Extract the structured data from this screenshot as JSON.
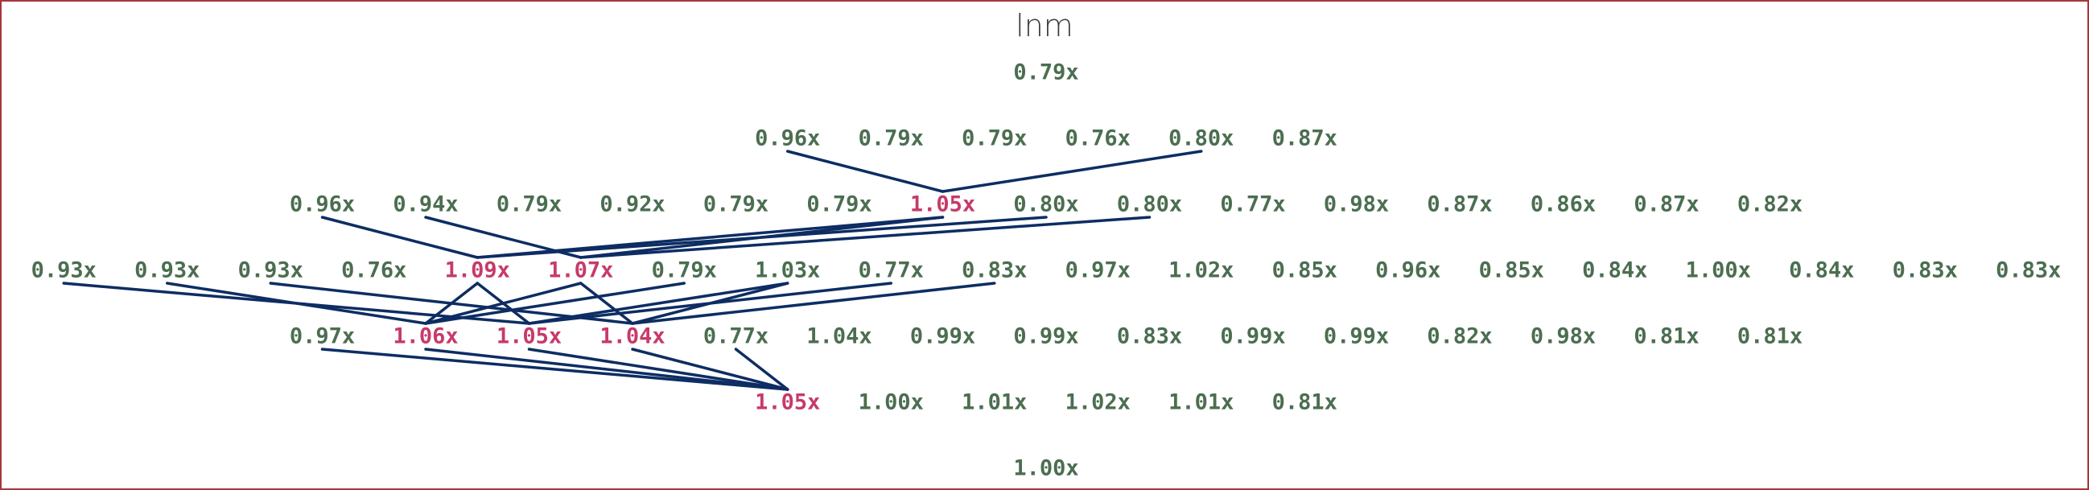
{
  "title": "lnm",
  "colors": {
    "node": "#4b6e50",
    "highlight": "#c73a6a",
    "edge": "#0d2d63",
    "title": "#3a3a3a",
    "border": "#a8343c"
  },
  "rows": [
    [
      {
        "label": "0.79x",
        "highlight": false
      }
    ],
    [
      {
        "label": "0.96x",
        "highlight": false
      },
      {
        "label": "0.79x",
        "highlight": false
      },
      {
        "label": "0.79x",
        "highlight": false
      },
      {
        "label": "0.76x",
        "highlight": false
      },
      {
        "label": "0.80x",
        "highlight": false
      },
      {
        "label": "0.87x",
        "highlight": false
      }
    ],
    [
      {
        "label": "0.96x",
        "highlight": false
      },
      {
        "label": "0.94x",
        "highlight": false
      },
      {
        "label": "0.79x",
        "highlight": false
      },
      {
        "label": "0.92x",
        "highlight": false
      },
      {
        "label": "0.79x",
        "highlight": false
      },
      {
        "label": "0.79x",
        "highlight": false
      },
      {
        "label": "1.05x",
        "highlight": true
      },
      {
        "label": "0.80x",
        "highlight": false
      },
      {
        "label": "0.80x",
        "highlight": false
      },
      {
        "label": "0.77x",
        "highlight": false
      },
      {
        "label": "0.98x",
        "highlight": false
      },
      {
        "label": "0.87x",
        "highlight": false
      },
      {
        "label": "0.86x",
        "highlight": false
      },
      {
        "label": "0.87x",
        "highlight": false
      },
      {
        "label": "0.82x",
        "highlight": false
      }
    ],
    [
      {
        "label": "0.93x",
        "highlight": false
      },
      {
        "label": "0.93x",
        "highlight": false
      },
      {
        "label": "0.93x",
        "highlight": false
      },
      {
        "label": "0.76x",
        "highlight": false
      },
      {
        "label": "1.09x",
        "highlight": true
      },
      {
        "label": "1.07x",
        "highlight": true
      },
      {
        "label": "0.79x",
        "highlight": false
      },
      {
        "label": "1.03x",
        "highlight": false
      },
      {
        "label": "0.77x",
        "highlight": false
      },
      {
        "label": "0.83x",
        "highlight": false
      },
      {
        "label": "0.97x",
        "highlight": false
      },
      {
        "label": "1.02x",
        "highlight": false
      },
      {
        "label": "0.85x",
        "highlight": false
      },
      {
        "label": "0.96x",
        "highlight": false
      },
      {
        "label": "0.85x",
        "highlight": false
      },
      {
        "label": "0.84x",
        "highlight": false
      },
      {
        "label": "1.00x",
        "highlight": false
      },
      {
        "label": "0.84x",
        "highlight": false
      },
      {
        "label": "0.83x",
        "highlight": false
      },
      {
        "label": "0.83x",
        "highlight": false
      }
    ],
    [
      {
        "label": "0.97x",
        "highlight": false
      },
      {
        "label": "1.06x",
        "highlight": true
      },
      {
        "label": "1.05x",
        "highlight": true
      },
      {
        "label": "1.04x",
        "highlight": true
      },
      {
        "label": "0.77x",
        "highlight": false
      },
      {
        "label": "1.04x",
        "highlight": false
      },
      {
        "label": "0.99x",
        "highlight": false
      },
      {
        "label": "0.99x",
        "highlight": false
      },
      {
        "label": "0.83x",
        "highlight": false
      },
      {
        "label": "0.99x",
        "highlight": false
      },
      {
        "label": "0.99x",
        "highlight": false
      },
      {
        "label": "0.82x",
        "highlight": false
      },
      {
        "label": "0.98x",
        "highlight": false
      },
      {
        "label": "0.81x",
        "highlight": false
      },
      {
        "label": "0.81x",
        "highlight": false
      }
    ],
    [
      {
        "label": "1.05x",
        "highlight": true
      },
      {
        "label": "1.00x",
        "highlight": false
      },
      {
        "label": "1.01x",
        "highlight": false
      },
      {
        "label": "1.02x",
        "highlight": false
      },
      {
        "label": "1.01x",
        "highlight": false
      },
      {
        "label": "0.81x",
        "highlight": false
      }
    ],
    [
      {
        "label": "1.00x",
        "highlight": false
      }
    ]
  ],
  "edges": [
    [
      1,
      0,
      2,
      6
    ],
    [
      1,
      4,
      2,
      6
    ],
    [
      2,
      0,
      3,
      4
    ],
    [
      2,
      1,
      3,
      5
    ],
    [
      2,
      6,
      3,
      4
    ],
    [
      2,
      6,
      3,
      5
    ],
    [
      2,
      7,
      3,
      4
    ],
    [
      2,
      8,
      3,
      5
    ],
    [
      3,
      0,
      4,
      2
    ],
    [
      3,
      1,
      4,
      1
    ],
    [
      3,
      2,
      4,
      3
    ],
    [
      3,
      4,
      4,
      1
    ],
    [
      3,
      4,
      4,
      2
    ],
    [
      3,
      5,
      4,
      1
    ],
    [
      3,
      5,
      4,
      3
    ],
    [
      3,
      6,
      4,
      1
    ],
    [
      3,
      7,
      4,
      2
    ],
    [
      3,
      7,
      4,
      3
    ],
    [
      3,
      8,
      4,
      2
    ],
    [
      3,
      9,
      4,
      3
    ],
    [
      4,
      0,
      5,
      0
    ],
    [
      4,
      1,
      5,
      0
    ],
    [
      4,
      2,
      5,
      0
    ],
    [
      4,
      3,
      5,
      0
    ],
    [
      4,
      4,
      5,
      0
    ]
  ]
}
